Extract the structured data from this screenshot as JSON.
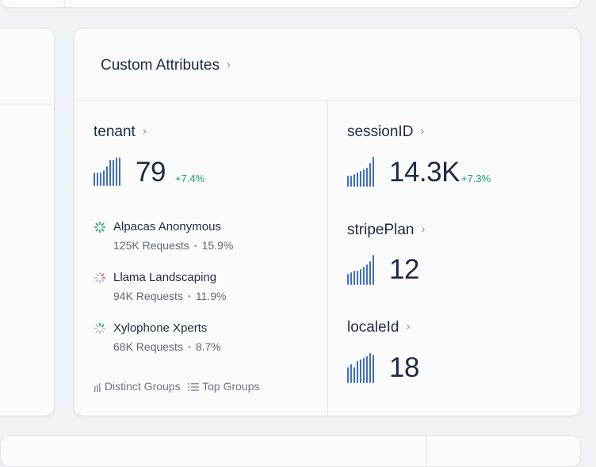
{
  "panel": {
    "title": "Custom Attributes"
  },
  "tenant": {
    "name": "tenant",
    "value": "79",
    "delta": "+7.4%",
    "groups": [
      {
        "name": "Alpacas Anonymous",
        "requests": "125K Requests",
        "share": "15.9%"
      },
      {
        "name": "Llama Landscaping",
        "requests": "94K Requests",
        "share": "11.9%"
      },
      {
        "name": "Xylophone Xperts",
        "requests": "68K Requests",
        "share": "8.7%"
      }
    ],
    "footer": {
      "distinct_label": "Distinct Groups",
      "top_label": "Top Groups"
    }
  },
  "sessionID": {
    "name": "sessionID",
    "value": "14.3K",
    "delta": "+7.3%"
  },
  "stripePlan": {
    "name": "stripePlan",
    "value": "12"
  },
  "localeId": {
    "name": "localeId",
    "value": "18"
  },
  "colors": {
    "bars": "#3f6fc2",
    "positive": "#18a06a",
    "text": "#1f2a44"
  },
  "icons": {
    "chevron": "chevron-right-icon",
    "bars": "bar-chart-icon",
    "spinner": "loading-spinner-icon",
    "list": "list-icon"
  }
}
